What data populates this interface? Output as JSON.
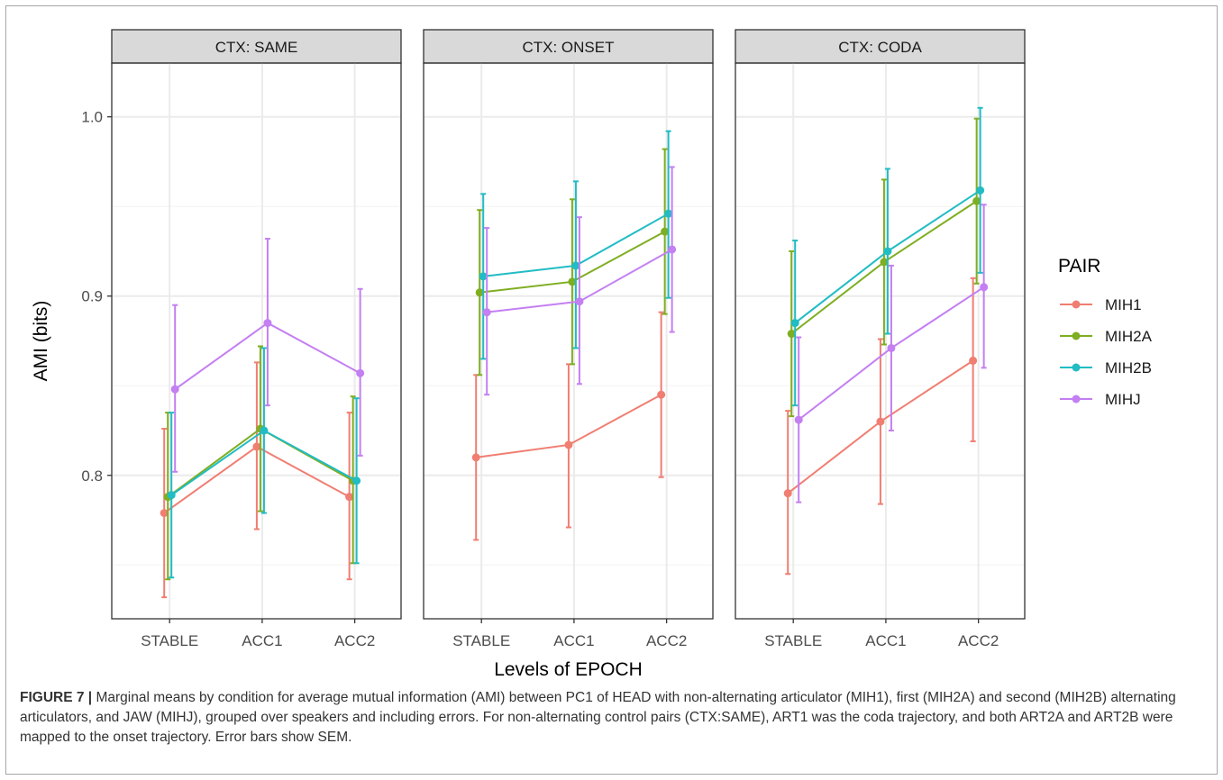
{
  "colors": {
    "MIH1": "#f07e72",
    "MIH2A": "#7fae22",
    "MIH2B": "#21bcc4",
    "MIHJ": "#c47ff2",
    "strip_bg": "#d9d9d9",
    "panel_border": "#333333",
    "grid": "#ebebeb"
  },
  "figure": {
    "label": "FIGURE 7 |",
    "text": " Marginal means by condition for average mutual information (AMI) between PC1 of HEAD with non-alternating articulator (MIH1), first (MIH2A) and second (MIH2B) alternating articulators, and JAW (MIHJ), grouped over speakers and including errors. For non-alternating control pairs (CTX:SAME), ART1 was the coda trajectory, and both ART2A and ART2B were mapped to the onset trajectory. Error bars show SEM."
  },
  "chart_data": {
    "type": "line",
    "xlabel": "Levels of EPOCH",
    "ylabel": "AMI  (bits)",
    "categories": [
      "STABLE",
      "ACC1",
      "ACC2"
    ],
    "ylim": [
      0.72,
      1.03
    ],
    "yticks": [
      "0.8",
      "0.9",
      "1.0"
    ],
    "grid": true,
    "legend": {
      "title": "PAIR",
      "position": "right",
      "entries": [
        "MIH1",
        "MIH2A",
        "MIH2B",
        "MIHJ"
      ]
    },
    "panels": [
      {
        "strip": "CTX: SAME",
        "series": [
          {
            "name": "MIH1",
            "values": [
              0.779,
              0.816,
              0.788
            ],
            "lower": [
              0.732,
              0.77,
              0.742
            ],
            "upper": [
              0.826,
              0.863,
              0.835
            ]
          },
          {
            "name": "MIH2A",
            "values": [
              0.788,
              0.826,
              0.797
            ],
            "lower": [
              0.742,
              0.78,
              0.751
            ],
            "upper": [
              0.835,
              0.872,
              0.844
            ]
          },
          {
            "name": "MIH2B",
            "values": [
              0.789,
              0.825,
              0.797
            ],
            "lower": [
              0.743,
              0.779,
              0.751
            ],
            "upper": [
              0.835,
              0.871,
              0.843
            ]
          },
          {
            "name": "MIHJ",
            "values": [
              0.848,
              0.885,
              0.857
            ],
            "lower": [
              0.802,
              0.839,
              0.811
            ],
            "upper": [
              0.895,
              0.932,
              0.904
            ]
          }
        ]
      },
      {
        "strip": "CTX: ONSET",
        "series": [
          {
            "name": "MIH1",
            "values": [
              0.81,
              0.817,
              0.845
            ],
            "lower": [
              0.764,
              0.771,
              0.799
            ],
            "upper": [
              0.856,
              0.862,
              0.891
            ]
          },
          {
            "name": "MIH2A",
            "values": [
              0.902,
              0.908,
              0.936
            ],
            "lower": [
              0.856,
              0.862,
              0.89
            ],
            "upper": [
              0.948,
              0.954,
              0.982
            ]
          },
          {
            "name": "MIH2B",
            "values": [
              0.911,
              0.917,
              0.946
            ],
            "lower": [
              0.865,
              0.871,
              0.899
            ],
            "upper": [
              0.957,
              0.964,
              0.992
            ]
          },
          {
            "name": "MIHJ",
            "values": [
              0.891,
              0.897,
              0.926
            ],
            "lower": [
              0.845,
              0.851,
              0.88
            ],
            "upper": [
              0.938,
              0.944,
              0.972
            ]
          }
        ]
      },
      {
        "strip": "CTX: CODA",
        "series": [
          {
            "name": "MIH1",
            "values": [
              0.79,
              0.83,
              0.864
            ],
            "lower": [
              0.745,
              0.784,
              0.819
            ],
            "upper": [
              0.836,
              0.876,
              0.91
            ]
          },
          {
            "name": "MIH2A",
            "values": [
              0.879,
              0.919,
              0.953
            ],
            "lower": [
              0.833,
              0.873,
              0.907
            ],
            "upper": [
              0.925,
              0.965,
              0.999
            ]
          },
          {
            "name": "MIH2B",
            "values": [
              0.885,
              0.925,
              0.959
            ],
            "lower": [
              0.839,
              0.879,
              0.913
            ],
            "upper": [
              0.931,
              0.971,
              1.005
            ]
          },
          {
            "name": "MIHJ",
            "values": [
              0.831,
              0.871,
              0.905
            ],
            "lower": [
              0.785,
              0.825,
              0.86
            ],
            "upper": [
              0.877,
              0.917,
              0.951
            ]
          }
        ]
      }
    ]
  }
}
